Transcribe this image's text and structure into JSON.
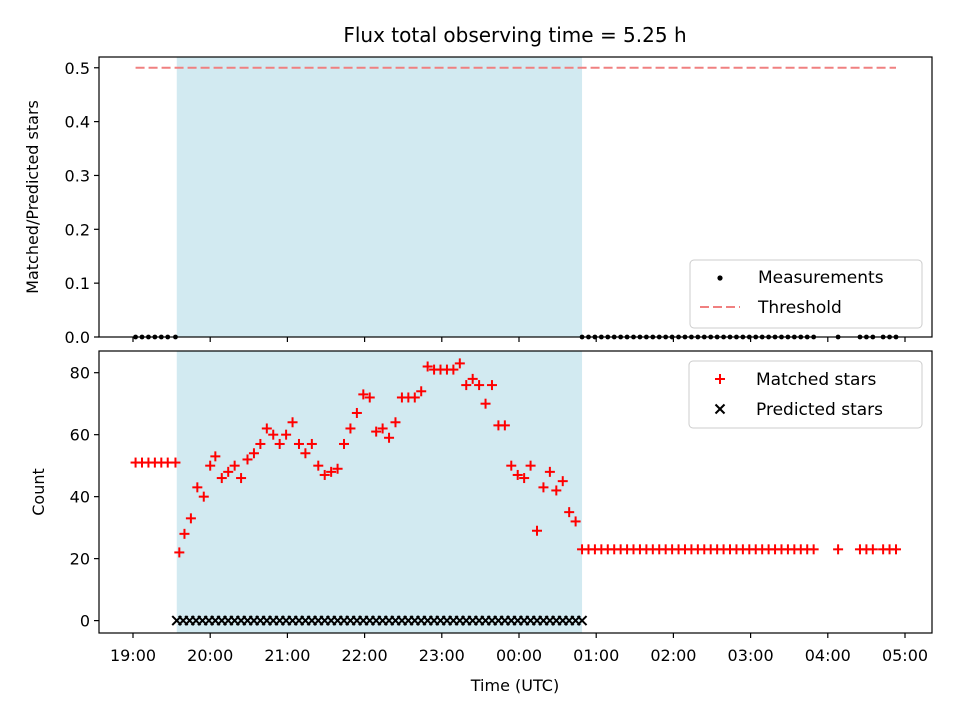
{
  "colors": {
    "matched": "#ff0000",
    "predicted": "#000000",
    "measurement": "#000000",
    "threshold": "#f08080",
    "shade": "#add8e6"
  },
  "chart_data": [
    {
      "type": "scatter",
      "title": "Flux total observing time = 5.25 h",
      "xlabel": "",
      "ylabel": "Matched/Predicted stars",
      "ylim": [
        0,
        0.52
      ],
      "yticks": [
        "0.0",
        "0.1",
        "0.2",
        "0.3",
        "0.4",
        "0.5"
      ],
      "legend_position": "lower-right",
      "shaded_interval": [
        "19:34",
        "00:49"
      ],
      "series": [
        {
          "name": "Measurements",
          "marker": "dot",
          "x": [
            "19:02",
            "19:07",
            "19:12",
            "19:17",
            "19:22",
            "19:27",
            "19:33",
            "00:49",
            "00:54",
            "00:59",
            "01:04",
            "01:09",
            "01:14",
            "01:19",
            "01:24",
            "01:29",
            "01:34",
            "01:39",
            "01:44",
            "01:49",
            "01:54",
            "01:59",
            "02:04",
            "02:09",
            "02:14",
            "02:19",
            "02:24",
            "02:29",
            "02:34",
            "02:39",
            "02:44",
            "02:49",
            "02:54",
            "02:59",
            "03:04",
            "03:09",
            "03:14",
            "03:19",
            "03:24",
            "03:29",
            "03:34",
            "03:39",
            "03:44",
            "03:49",
            "04:08",
            "04:25",
            "04:30",
            "04:35",
            "04:43",
            "04:48",
            "04:53"
          ],
          "values": [
            0,
            0,
            0,
            0,
            0,
            0,
            0,
            0,
            0,
            0,
            0,
            0,
            0,
            0,
            0,
            0,
            0,
            0,
            0,
            0,
            0,
            0,
            0,
            0,
            0,
            0,
            0,
            0,
            0,
            0,
            0,
            0,
            0,
            0,
            0,
            0,
            0,
            0,
            0,
            0,
            0,
            0,
            0,
            0,
            0,
            0,
            0,
            0,
            0,
            0,
            0
          ]
        },
        {
          "name": "Threshold",
          "marker": "dashed-line",
          "x": [
            "19:02",
            "04:53"
          ],
          "values": [
            0.5,
            0.5
          ]
        }
      ]
    },
    {
      "type": "scatter",
      "title": "",
      "xlabel": "Time (UTC)",
      "ylabel": "Count",
      "ylim": [
        -4,
        87
      ],
      "yticks": [
        "0",
        "20",
        "40",
        "60",
        "80"
      ],
      "xticks": [
        "19:00",
        "20:00",
        "21:00",
        "22:00",
        "23:00",
        "00:00",
        "01:00",
        "02:00",
        "03:00",
        "04:00",
        "05:00"
      ],
      "legend_position": "upper-right",
      "shaded_interval": [
        "19:34",
        "00:49"
      ],
      "series": [
        {
          "name": "Matched stars",
          "marker": "plus",
          "x": [
            "19:02",
            "19:07",
            "19:12",
            "19:17",
            "19:22",
            "19:27",
            "19:33",
            "19:36",
            "19:40",
            "19:45",
            "19:50",
            "19:55",
            "20:00",
            "20:04",
            "20:09",
            "20:14",
            "20:19",
            "20:24",
            "20:29",
            "20:34",
            "20:39",
            "20:44",
            "20:49",
            "20:54",
            "20:59",
            "21:04",
            "21:09",
            "21:14",
            "21:19",
            "21:24",
            "21:29",
            "21:34",
            "21:39",
            "21:44",
            "21:49",
            "21:54",
            "21:59",
            "22:04",
            "22:09",
            "22:14",
            "22:19",
            "22:24",
            "22:29",
            "22:34",
            "22:39",
            "22:44",
            "22:49",
            "22:54",
            "22:59",
            "23:04",
            "23:09",
            "23:14",
            "23:19",
            "23:24",
            "23:29",
            "23:34",
            "23:39",
            "23:44",
            "23:49",
            "23:54",
            "23:59",
            "00:04",
            "00:09",
            "00:14",
            "00:19",
            "00:24",
            "00:29",
            "00:34",
            "00:39",
            "00:44",
            "00:49",
            "00:54",
            "00:59",
            "01:04",
            "01:09",
            "01:14",
            "01:19",
            "01:24",
            "01:29",
            "01:34",
            "01:39",
            "01:44",
            "01:49",
            "01:54",
            "01:59",
            "02:04",
            "02:09",
            "02:14",
            "02:19",
            "02:24",
            "02:29",
            "02:34",
            "02:39",
            "02:44",
            "02:49",
            "02:54",
            "02:59",
            "03:04",
            "03:09",
            "03:14",
            "03:19",
            "03:24",
            "03:29",
            "03:34",
            "03:39",
            "03:44",
            "03:49",
            "04:08",
            "04:25",
            "04:30",
            "04:35",
            "04:43",
            "04:48",
            "04:53"
          ],
          "values": [
            51,
            51,
            51,
            51,
            51,
            51,
            51,
            22,
            28,
            33,
            43,
            40,
            50,
            53,
            46,
            48,
            50,
            46,
            52,
            54,
            57,
            62,
            60,
            57,
            60,
            64,
            57,
            54,
            57,
            50,
            47,
            48,
            49,
            57,
            62,
            67,
            73,
            72,
            61,
            62,
            59,
            64,
            72,
            72,
            72,
            74,
            82,
            81,
            81,
            81,
            81,
            83,
            76,
            78,
            76,
            70,
            76,
            63,
            63,
            50,
            47,
            46,
            50,
            29,
            43,
            48,
            42,
            45,
            35,
            32,
            23,
            23,
            23,
            23,
            23,
            23,
            23,
            23,
            23,
            23,
            23,
            23,
            23,
            23,
            23,
            23,
            23,
            23,
            23,
            23,
            23,
            23,
            23,
            23,
            23,
            23,
            23,
            23,
            23,
            23,
            23,
            23,
            23,
            23,
            23,
            23,
            23,
            23,
            23,
            23,
            23,
            23,
            23,
            23
          ]
        },
        {
          "name": "Predicted stars",
          "marker": "x",
          "x": [
            "19:34",
            "19:39",
            "19:44",
            "19:49",
            "19:54",
            "19:59",
            "20:04",
            "20:09",
            "20:14",
            "20:19",
            "20:24",
            "20:29",
            "20:34",
            "20:39",
            "20:44",
            "20:49",
            "20:54",
            "20:59",
            "21:04",
            "21:09",
            "21:14",
            "21:19",
            "21:24",
            "21:29",
            "21:34",
            "21:39",
            "21:44",
            "21:49",
            "21:54",
            "21:59",
            "22:04",
            "22:09",
            "22:14",
            "22:19",
            "22:24",
            "22:29",
            "22:34",
            "22:39",
            "22:44",
            "22:49",
            "22:54",
            "22:59",
            "23:04",
            "23:09",
            "23:14",
            "23:19",
            "23:24",
            "23:29",
            "23:34",
            "23:39",
            "23:44",
            "23:49",
            "23:54",
            "23:59",
            "00:04",
            "00:09",
            "00:14",
            "00:19",
            "00:24",
            "00:29",
            "00:34",
            "00:39",
            "00:44",
            "00:49"
          ],
          "values": [
            0,
            0,
            0,
            0,
            0,
            0,
            0,
            0,
            0,
            0,
            0,
            0,
            0,
            0,
            0,
            0,
            0,
            0,
            0,
            0,
            0,
            0,
            0,
            0,
            0,
            0,
            0,
            0,
            0,
            0,
            0,
            0,
            0,
            0,
            0,
            0,
            0,
            0,
            0,
            0,
            0,
            0,
            0,
            0,
            0,
            0,
            0,
            0,
            0,
            0,
            0,
            0,
            0,
            0,
            0,
            0,
            0,
            0,
            0,
            0,
            0,
            0,
            0,
            0
          ]
        }
      ]
    }
  ]
}
